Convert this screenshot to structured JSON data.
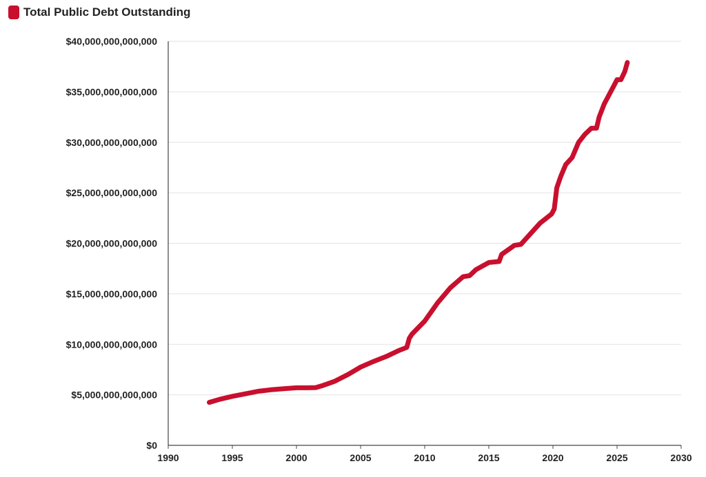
{
  "legend": {
    "label": "Total Public Debt Outstanding",
    "color": "#c8102e"
  },
  "chart_data": {
    "type": "line",
    "title": "",
    "xlabel": "",
    "ylabel": "",
    "xlim": [
      1990,
      2030
    ],
    "ylim": [
      0,
      40000000000000
    ],
    "grid": true,
    "legend_position": "top-left",
    "x_ticks": [
      {
        "value": 1990,
        "label": "1990"
      },
      {
        "value": 1995,
        "label": "1995"
      },
      {
        "value": 2000,
        "label": "2000"
      },
      {
        "value": 2005,
        "label": "2005"
      },
      {
        "value": 2010,
        "label": "2010"
      },
      {
        "value": 2015,
        "label": "2015"
      },
      {
        "value": 2020,
        "label": "2020"
      },
      {
        "value": 2025,
        "label": "2025"
      },
      {
        "value": 2030,
        "label": "2030"
      }
    ],
    "y_ticks": [
      {
        "value": 0,
        "label": "$0"
      },
      {
        "value": 5000000000000,
        "label": "$5,000,000,000,000"
      },
      {
        "value": 10000000000000,
        "label": "$10,000,000,000,000"
      },
      {
        "value": 15000000000000,
        "label": "$15,000,000,000,000"
      },
      {
        "value": 20000000000000,
        "label": "$20,000,000,000,000"
      },
      {
        "value": 25000000000000,
        "label": "$25,000,000,000,000"
      },
      {
        "value": 30000000000000,
        "label": "$30,000,000,000,000"
      },
      {
        "value": 35000000000000,
        "label": "$35,000,000,000,000"
      },
      {
        "value": 40000000000000,
        "label": "$40,000,000,000,000"
      }
    ],
    "series": [
      {
        "name": "Total Public Debt Outstanding",
        "color": "#c8102e",
        "x": [
          1993.2,
          1994,
          1995,
          1996,
          1997,
          1998,
          1999,
          2000,
          2000.8,
          2001.5,
          2002,
          2003,
          2004,
          2005,
          2006,
          2007,
          2008,
          2008.6,
          2008.8,
          2009,
          2010,
          2011,
          2012,
          2013,
          2013.5,
          2014,
          2015,
          2015.8,
          2016,
          2017,
          2017.5,
          2018,
          2019,
          2019.9,
          2020.1,
          2020.3,
          2020.6,
          2021,
          2021.5,
          2022,
          2022.5,
          2023,
          2023.4,
          2023.6,
          2024,
          2024.5,
          2025,
          2025.3,
          2025.6,
          2025.8
        ],
        "y": [
          4250000000000.0,
          4550000000000.0,
          4850000000000.0,
          5100000000000.0,
          5350000000000.0,
          5500000000000.0,
          5600000000000.0,
          5700000000000.0,
          5700000000000.0,
          5720000000000.0,
          5900000000000.0,
          6350000000000.0,
          7000000000000.0,
          7750000000000.0,
          8300000000000.0,
          8800000000000.0,
          9400000000000.0,
          9700000000000.0,
          10600000000000.0,
          11000000000000.0,
          12300000000000.0,
          14100000000000.0,
          15600000000000.0,
          16700000000000.0,
          16800000000000.0,
          17400000000000.0,
          18100000000000.0,
          18200000000000.0,
          18900000000000.0,
          19800000000000.0,
          19900000000000.0,
          20600000000000.0,
          22000000000000.0,
          22900000000000.0,
          23400000000000.0,
          25500000000000.0,
          26600000000000.0,
          27800000000000.0,
          28500000000000.0,
          30000000000000.0,
          30800000000000.0,
          31400000000000.0,
          31400000000000.0,
          32500000000000.0,
          33800000000000.0,
          35000000000000.0,
          36200000000000.0,
          36200000000000.0,
          37000000000000.0,
          37900000000000.0
        ]
      }
    ]
  }
}
